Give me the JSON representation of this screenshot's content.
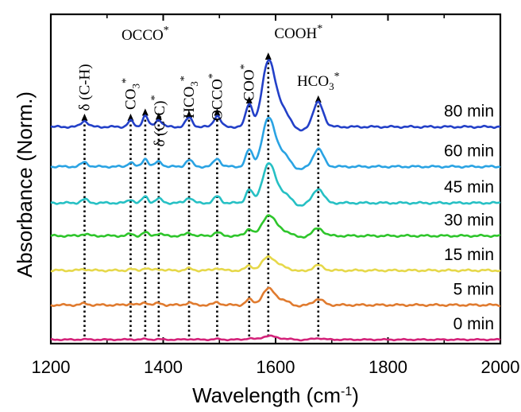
{
  "chart_data": {
    "type": "line",
    "title": "",
    "xlabel": "Wavelength (cm",
    "xlabel_sup": "-1",
    "xlabel_end": ")",
    "ylabel": "Absorbance (Norm.)",
    "xlim": [
      1200,
      2000
    ],
    "xticks": [
      1200,
      1400,
      1600,
      1800,
      2000
    ],
    "xtick_labels": [
      "1200",
      "1400",
      "1600",
      "1800",
      "2000"
    ],
    "series": [
      {
        "name": "0 min",
        "label": "0 min",
        "color": "#d4237a",
        "offset": 0.0,
        "scale": 0.08
      },
      {
        "name": "5 min",
        "label": "5 min",
        "color": "#e07b2f",
        "offset": 1.0,
        "scale": 0.35
      },
      {
        "name": "15 min",
        "label": "15 min",
        "color": "#e6d84a",
        "offset": 2.0,
        "scale": 0.3
      },
      {
        "name": "30 min",
        "label": "30 min",
        "color": "#2ec52b",
        "offset": 3.0,
        "scale": 0.45
      },
      {
        "name": "45 min",
        "label": "45 min",
        "color": "#26c0c4",
        "offset": 3.95,
        "scale": 0.85
      },
      {
        "name": "60 min",
        "label": "60 min",
        "color": "#2aa3e3",
        "offset": 5.0,
        "scale": 1.05
      },
      {
        "name": "80 min",
        "label": "80 min",
        "color": "#2340c8",
        "offset": 6.15,
        "scale": 1.45
      }
    ],
    "peaks": [
      {
        "x": 1260,
        "amp": 0.12,
        "w": 6
      },
      {
        "x": 1342,
        "amp": 0.12,
        "w": 5
      },
      {
        "x": 1368,
        "amp": 0.22,
        "w": 5
      },
      {
        "x": 1392,
        "amp": 0.14,
        "w": 6
      },
      {
        "x": 1446,
        "amp": 0.18,
        "w": 6
      },
      {
        "x": 1496,
        "amp": 0.22,
        "w": 6
      },
      {
        "x": 1553,
        "amp": 0.45,
        "w": 6
      },
      {
        "x": 1587,
        "amp": 1.2,
        "w": 11
      },
      {
        "x": 1676,
        "amp": 0.48,
        "w": 9
      }
    ],
    "annotations": [
      {
        "x": 1260,
        "label": "δ (C-H)",
        "sup": "",
        "rotate": true
      },
      {
        "x": 1342,
        "label": "CO",
        "sub": "3",
        "sup": "*",
        "rotate": true
      },
      {
        "x": 1368,
        "label": "OCCO",
        "sup": "*",
        "rotate": false
      },
      {
        "x": 1392,
        "label": "δ (C-C)",
        "sup": "*",
        "rotate": true
      },
      {
        "x": 1446,
        "label": "HCO",
        "sub": "3",
        "sup": "*",
        "rotate": true
      },
      {
        "x": 1496,
        "label": "OCCO",
        "sup": "*",
        "rotate": true
      },
      {
        "x": 1553,
        "label": "COO",
        "sup": "*",
        "rotate": true
      },
      {
        "x": 1587,
        "label": "COOH",
        "sup": "*",
        "rotate": false
      },
      {
        "x": 1676,
        "label": "HCO",
        "sub": "3",
        "sup": "*",
        "rotate": false
      }
    ]
  }
}
